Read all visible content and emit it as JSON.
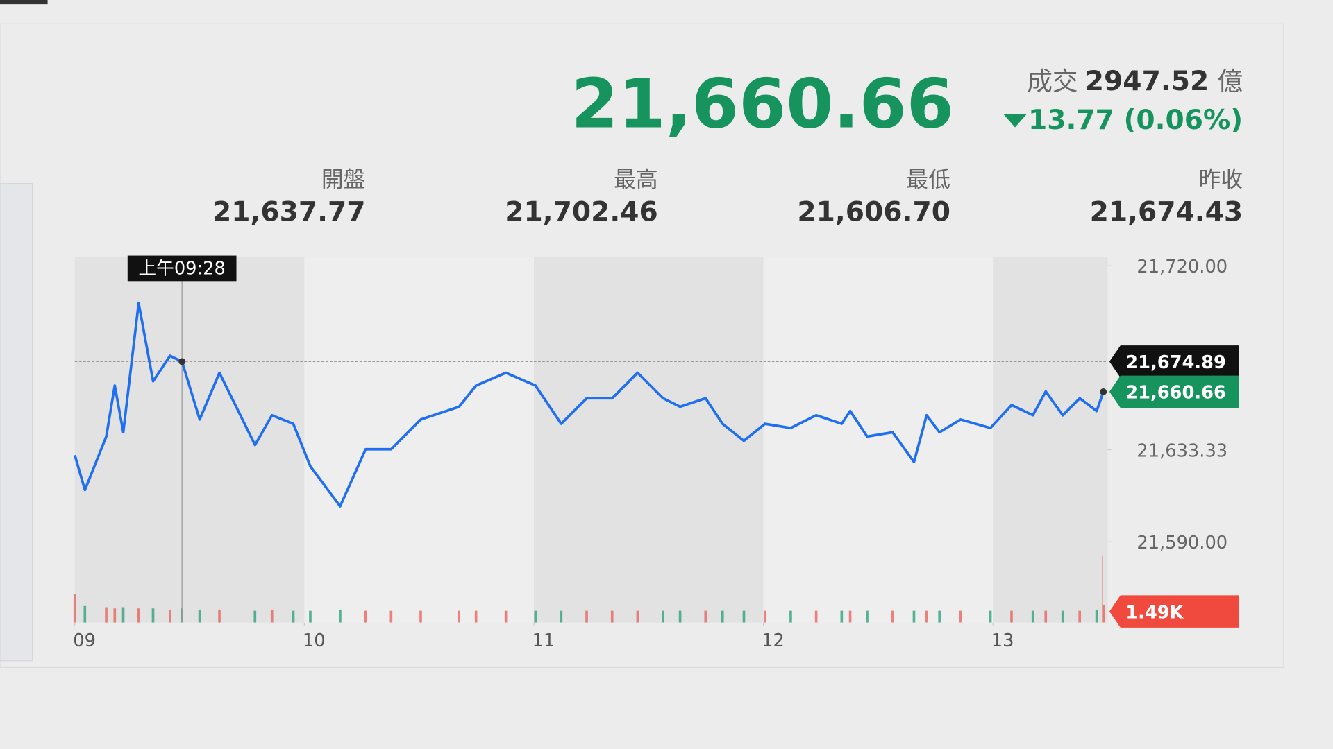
{
  "quote": {
    "price": "21,660.66",
    "turnover_label": "成交",
    "turnover": "2947.52",
    "turnover_unit": "億",
    "change": "13.77 (0.06%)",
    "stats": [
      {
        "label": "開盤",
        "value": "21,637.77"
      },
      {
        "label": "最高",
        "value": "21,702.46"
      },
      {
        "label": "最低",
        "value": "21,606.70"
      },
      {
        "label": "昨收",
        "value": "21,674.43"
      }
    ]
  },
  "chart_data": {
    "type": "line",
    "x": [
      9.0,
      9.044,
      9.137,
      9.174,
      9.211,
      9.278,
      9.341,
      9.415,
      9.467,
      9.544,
      9.63,
      9.785,
      9.859,
      9.952,
      10.026,
      10.156,
      10.267,
      10.378,
      10.507,
      10.674,
      10.748,
      10.878,
      11.007,
      11.119,
      11.23,
      11.341,
      11.452,
      11.563,
      11.637,
      11.748,
      11.822,
      11.915,
      12.007,
      12.119,
      12.23,
      12.341,
      12.378,
      12.452,
      12.563,
      12.656,
      12.711,
      12.767,
      12.859,
      12.989,
      13.081,
      13.174,
      13.23,
      13.304,
      13.378,
      13.452,
      13.481
    ],
    "series": [
      {
        "name": "price",
        "color": "#1f6ff0",
        "values": [
          21630.8,
          21614.4,
          21639.6,
          21663.6,
          21641.6,
          21702.4,
          21665.6,
          21677.6,
          21674.89,
          21647.6,
          21669.6,
          21635.6,
          21649.6,
          21645.6,
          21625.6,
          21606.7,
          21633.6,
          21633.6,
          21647.6,
          21653.6,
          21663.6,
          21669.6,
          21663.6,
          21645.6,
          21657.6,
          21657.6,
          21669.6,
          21657.6,
          21653.6,
          21657.6,
          21645.6,
          21637.6,
          21645.6,
          21643.6,
          21649.6,
          21645.6,
          21651.6,
          21639.6,
          21641.6,
          21627.6,
          21649.6,
          21641.6,
          21647.6,
          21643.6,
          21654.4,
          21649.6,
          21660.8,
          21649.6,
          21657.6,
          21651.6,
          21660.66
        ]
      },
      {
        "name": "volume",
        "axis": "y2",
        "values": [
          2.4,
          1.4,
          1.3,
          1.2,
          1.3,
          1.2,
          1.2,
          1.1,
          1.2,
          1.1,
          1.1,
          1.0,
          1.1,
          1.0,
          1.0,
          1.1,
          1.0,
          1.0,
          1.0,
          1.0,
          1.0,
          1.0,
          1.0,
          1.0,
          1.0,
          1.0,
          1.0,
          1.0,
          1.0,
          1.0,
          1.0,
          1.0,
          1.0,
          1.0,
          1.0,
          1.0,
          1.0,
          1.0,
          1.0,
          1.0,
          1.0,
          1.0,
          1.0,
          1.0,
          1.0,
          1.0,
          1.0,
          1.0,
          1.0,
          1.1,
          1.49
        ]
      }
    ],
    "xlim": [
      9,
      13.5
    ],
    "xticks": [
      {
        "value": 9,
        "label": "09"
      },
      {
        "value": 10,
        "label": "10"
      },
      {
        "value": 11,
        "label": "11"
      },
      {
        "value": 12,
        "label": "12"
      },
      {
        "value": 13,
        "label": "13"
      }
    ],
    "ylim": [
      21552,
      21724
    ],
    "yticks": [
      {
        "value": 21720,
        "label": "21,720.00"
      },
      {
        "value": 21633.33,
        "label": "21,633.33"
      },
      {
        "value": 21590,
        "label": "21,590.00"
      }
    ],
    "y2lim": [
      0,
      6
    ],
    "crosshair": {
      "x": 9.467,
      "time_label": "上午09:28",
      "value": 21674.89,
      "label": "21,674.89"
    },
    "last": {
      "value": 21660.66,
      "label": "21,660.66"
    },
    "last_volume": {
      "value": 1.49,
      "label": "1.49K"
    }
  }
}
